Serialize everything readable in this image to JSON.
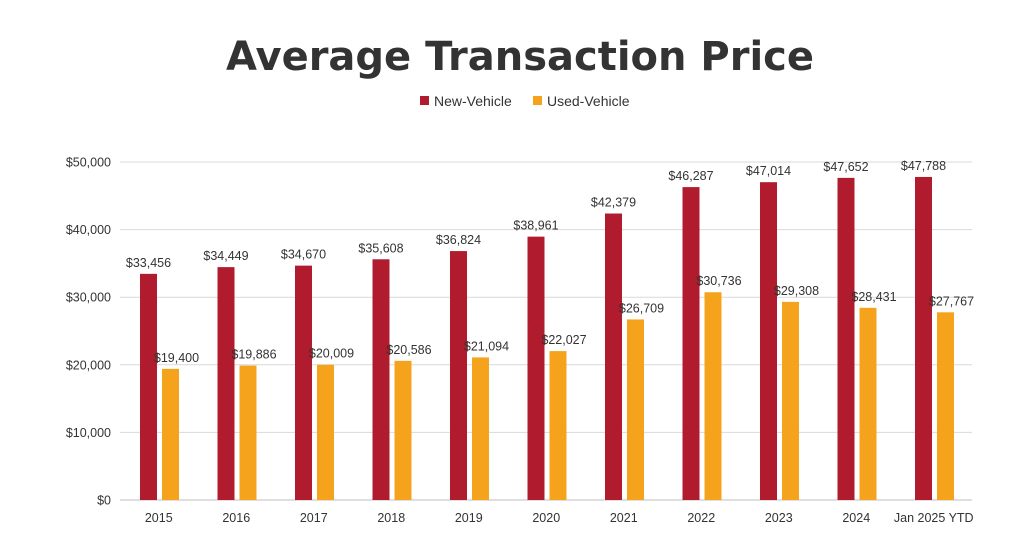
{
  "chart_data": {
    "type": "bar",
    "title": "Average Transaction Price",
    "categories": [
      "2015",
      "2016",
      "2017",
      "2018",
      "2019",
      "2020",
      "2021",
      "2022",
      "2023",
      "2024",
      "Jan 2025 YTD"
    ],
    "series": [
      {
        "name": "New-Vehicle",
        "color": "#b01c2e",
        "values": [
          33456,
          34449,
          34670,
          35608,
          36824,
          38961,
          42379,
          46287,
          47014,
          47652,
          47788
        ],
        "labels": [
          "$33,456",
          "$34,449",
          "$34,670",
          "$35,608",
          "$36,824",
          "$38,961",
          "$42,379",
          "$46,287",
          "$47,014",
          "$47,652",
          "$47,788"
        ]
      },
      {
        "name": "Used-Vehicle",
        "color": "#f5a31d",
        "values": [
          19400,
          19886,
          20009,
          20586,
          21094,
          22027,
          26709,
          30736,
          29308,
          28431,
          27767
        ],
        "labels": [
          "$19,400",
          "$19,886",
          "$20,009",
          "$20,586",
          "$21,094",
          "$22,027",
          "$26,709",
          "$30,736",
          "$29,308",
          "$28,431",
          "$27,767"
        ]
      }
    ],
    "ylim": [
      0,
      50000
    ],
    "yticks": [
      0,
      10000,
      20000,
      30000,
      40000,
      50000
    ],
    "ytick_labels": [
      "$0",
      "$10,000",
      "$20,000",
      "$30,000",
      "$40,000",
      "$50,000"
    ],
    "xlabel": "",
    "ylabel": "",
    "grid": true,
    "legend_position": "top-center"
  }
}
